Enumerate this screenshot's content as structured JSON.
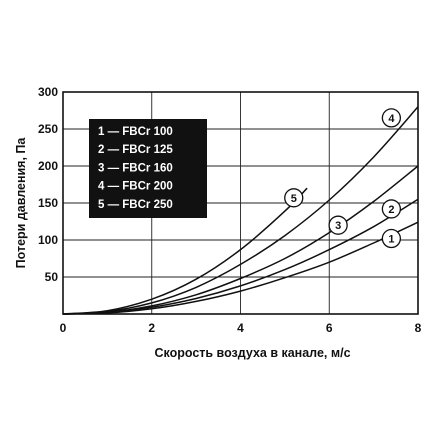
{
  "chart_data": {
    "type": "line",
    "xlabel": "Скорость воздуха в канале, м/с",
    "ylabel": "Потери давления, Па",
    "xlim": [
      0,
      8
    ],
    "ylim": [
      0,
      300
    ],
    "x_ticks": [
      "0",
      "2",
      "4",
      "6",
      "8"
    ],
    "y_ticks": [
      "50",
      "100",
      "150",
      "200",
      "250",
      "300"
    ],
    "grid": true,
    "legend_position": "top-left",
    "legend": [
      "1 — FBCr 100",
      "2 — FBCr 125",
      "3 — FBCr 160",
      "4 — FBCr 200",
      "5 — FBCr 250"
    ],
    "series": [
      {
        "name": "1",
        "x": [
          0,
          1,
          2,
          3,
          4,
          5,
          6,
          7,
          8
        ],
        "values": [
          0,
          1.5,
          7,
          17,
          31,
          49,
          70,
          96,
          124
        ]
      },
      {
        "name": "2",
        "x": [
          0,
          1,
          2,
          3,
          4,
          5,
          6,
          7,
          8
        ],
        "values": [
          0,
          2,
          9,
          21,
          38,
          60,
          87,
          118,
          155
        ]
      },
      {
        "name": "3",
        "x": [
          0,
          1,
          2,
          3,
          4,
          5,
          6,
          7,
          8
        ],
        "values": [
          0,
          2.5,
          11,
          26,
          48,
          75,
          110,
          152,
          200
        ]
      },
      {
        "name": "4",
        "x": [
          0,
          1,
          2,
          3,
          4,
          5,
          6,
          7,
          8
        ],
        "values": [
          0,
          3.5,
          15,
          36,
          67,
          106,
          154,
          212,
          280
        ]
      },
      {
        "name": "5",
        "x": [
          0,
          1,
          2,
          3,
          4,
          5,
          5.5
        ],
        "values": [
          0,
          4.5,
          20,
          47,
          87,
          139,
          170
        ]
      }
    ],
    "curve_markers": [
      {
        "label": "1",
        "x": 7.4,
        "y": 102
      },
      {
        "label": "2",
        "x": 7.4,
        "y": 142
      },
      {
        "label": "3",
        "x": 6.2,
        "y": 120
      },
      {
        "label": "4",
        "x": 7.4,
        "y": 265
      },
      {
        "label": "5",
        "x": 5.2,
        "y": 157
      }
    ]
  }
}
